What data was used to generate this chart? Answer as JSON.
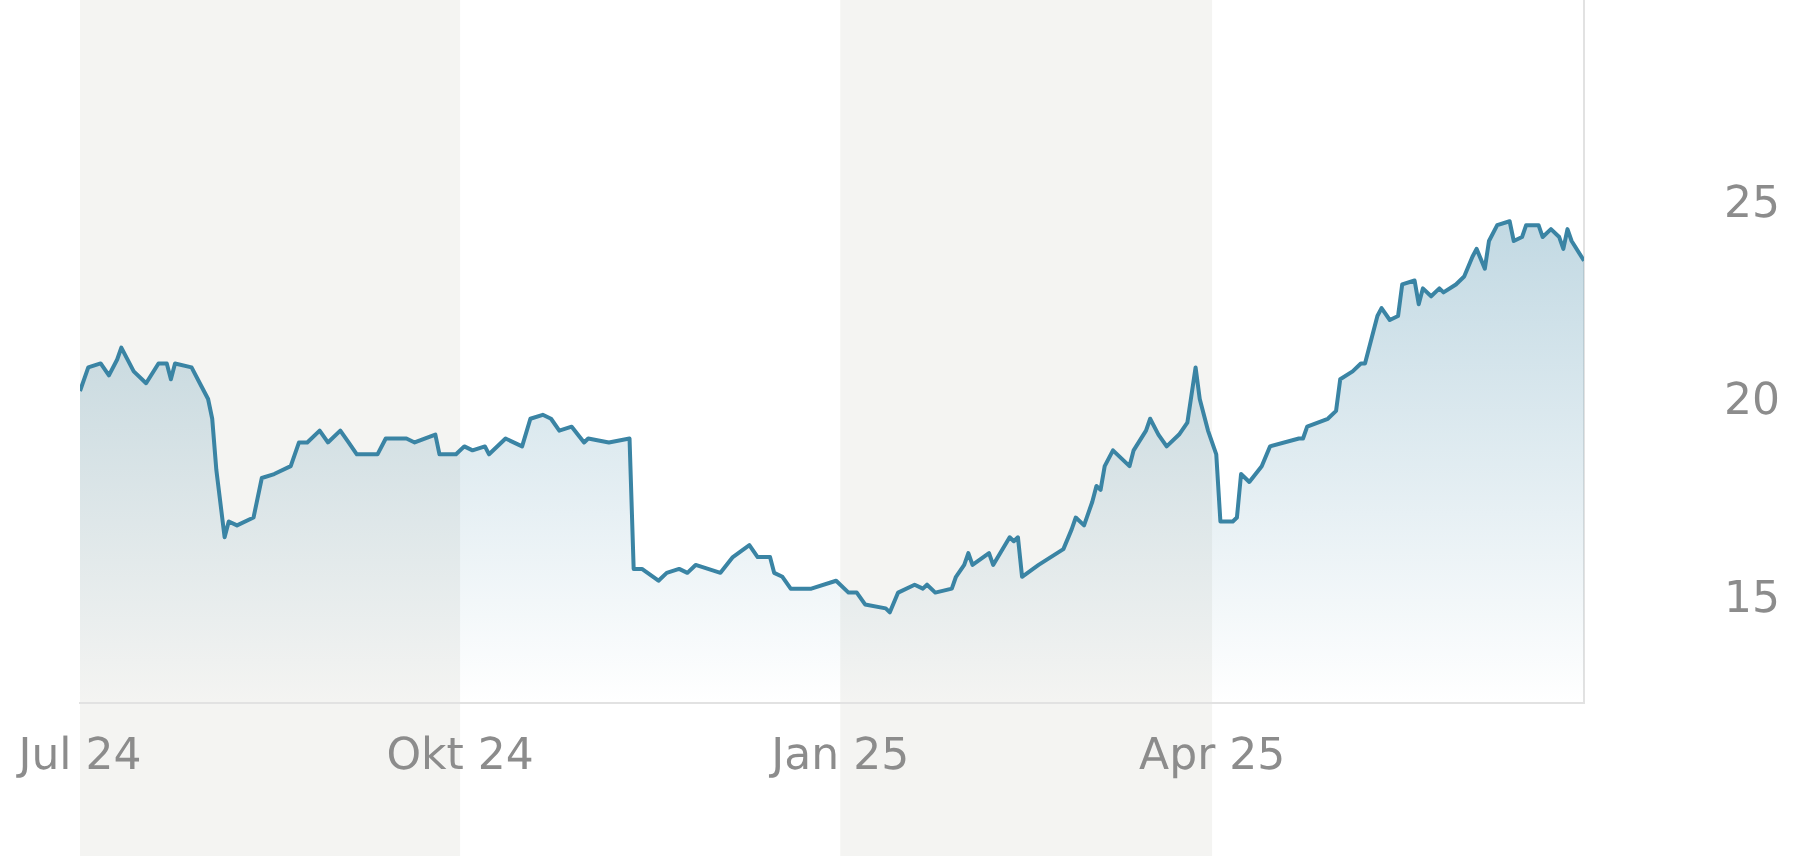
{
  "chart_data": {
    "type": "area",
    "x": [
      "2024-07-01",
      "2024-07-03",
      "2024-07-06",
      "2024-07-08",
      "2024-07-10",
      "2024-07-11",
      "2024-07-14",
      "2024-07-17",
      "2024-07-20",
      "2024-07-22",
      "2024-07-23",
      "2024-07-24",
      "2024-07-28",
      "2024-07-30",
      "2024-08-01",
      "2024-08-02",
      "2024-08-03",
      "2024-08-05",
      "2024-08-06",
      "2024-08-08",
      "2024-08-12",
      "2024-08-14",
      "2024-08-17",
      "2024-08-21",
      "2024-08-23",
      "2024-08-25",
      "2024-08-28",
      "2024-08-30",
      "2024-09-02",
      "2024-09-04",
      "2024-09-06",
      "2024-09-11",
      "2024-09-13",
      "2024-09-18",
      "2024-09-20",
      "2024-09-25",
      "2024-09-26",
      "2024-09-30",
      "2024-10-02",
      "2024-10-04",
      "2024-10-07",
      "2024-10-08",
      "2024-10-12",
      "2024-10-16",
      "2024-10-18",
      "2024-10-21",
      "2024-10-23",
      "2024-10-25",
      "2024-10-28",
      "2024-10-31",
      "2024-11-01",
      "2024-11-06",
      "2024-11-11",
      "2024-11-12",
      "2024-11-14",
      "2024-11-18",
      "2024-11-20",
      "2024-11-23",
      "2024-11-25",
      "2024-11-27",
      "2024-11-30",
      "2024-12-03",
      "2024-12-06",
      "2024-12-10",
      "2024-12-12",
      "2024-12-15",
      "2024-12-16",
      "2024-12-18",
      "2024-12-20",
      "2024-12-25",
      "2024-12-31",
      "2025-01-03",
      "2025-01-05",
      "2025-01-07",
      "2025-01-12",
      "2025-01-13",
      "2025-01-15",
      "2025-01-19",
      "2025-01-21",
      "2025-01-22",
      "2025-01-24",
      "2025-01-28",
      "2025-01-29",
      "2025-01-31",
      "2025-02-01",
      "2025-02-02",
      "2025-02-06",
      "2025-02-07",
      "2025-02-11",
      "2025-02-12",
      "2025-02-13",
      "2025-02-14",
      "2025-02-18",
      "2025-02-24",
      "2025-02-26",
      "2025-02-27",
      "2025-03-01",
      "2025-03-03",
      "2025-03-04",
      "2025-03-05",
      "2025-03-06",
      "2025-03-08",
      "2025-03-12",
      "2025-03-13",
      "2025-03-16",
      "2025-03-17",
      "2025-03-19",
      "2025-03-21",
      "2025-03-24",
      "2025-03-26",
      "2025-03-28",
      "2025-03-29",
      "2025-03-31",
      "2025-04-02",
      "2025-04-03",
      "2025-04-06",
      "2025-04-07",
      "2025-04-08",
      "2025-04-10",
      "2025-04-13",
      "2025-04-15",
      "2025-04-22",
      "2025-04-23",
      "2025-04-24",
      "2025-04-29",
      "2025-05-01",
      "2025-05-02",
      "2025-05-05",
      "2025-05-07",
      "2025-05-08",
      "2025-05-11",
      "2025-05-12",
      "2025-05-14",
      "2025-05-16",
      "2025-05-17",
      "2025-05-20",
      "2025-05-21",
      "2025-05-22",
      "2025-05-24",
      "2025-05-26",
      "2025-05-27",
      "2025-05-30",
      "2025-06-01",
      "2025-06-03",
      "2025-06-04",
      "2025-06-06",
      "2025-06-07",
      "2025-06-09",
      "2025-06-12",
      "2025-06-13",
      "2025-06-15",
      "2025-06-16",
      "2025-06-19",
      "2025-06-20",
      "2025-06-22",
      "2025-06-24",
      "2025-06-25",
      "2025-06-26",
      "2025-06-27",
      "2025-06-30"
    ],
    "series": [
      {
        "color": "#3a84a4",
        "values": [
          20.3,
          20.9,
          21.0,
          20.7,
          21.1,
          21.4,
          20.8,
          20.5,
          21.0,
          21.0,
          20.6,
          21.0,
          20.9,
          20.5,
          20.1,
          19.6,
          18.3,
          16.6,
          17.0,
          16.9,
          17.1,
          18.1,
          18.2,
          18.4,
          19.0,
          19.0,
          19.3,
          19.0,
          19.3,
          19.0,
          18.7,
          18.7,
          19.1,
          19.1,
          19.0,
          19.2,
          18.7,
          18.7,
          18.9,
          18.8,
          18.9,
          18.7,
          19.1,
          18.9,
          19.6,
          19.7,
          19.6,
          19.3,
          19.4,
          19.0,
          19.1,
          19.0,
          19.1,
          15.8,
          15.8,
          15.5,
          15.7,
          15.8,
          15.7,
          15.9,
          15.8,
          15.7,
          16.1,
          16.4,
          16.1,
          16.1,
          15.7,
          15.6,
          15.3,
          15.3,
          15.5,
          15.2,
          15.2,
          14.9,
          14.8,
          14.7,
          15.2,
          15.4,
          15.3,
          15.4,
          15.2,
          15.3,
          15.6,
          15.9,
          16.2,
          15.9,
          16.2,
          15.9,
          16.6,
          16.5,
          16.6,
          15.6,
          15.9,
          16.3,
          16.8,
          17.1,
          16.9,
          17.5,
          17.9,
          17.8,
          18.4,
          18.8,
          18.4,
          18.8,
          19.3,
          19.6,
          19.2,
          18.9,
          19.2,
          19.5,
          20.9,
          20.1,
          19.3,
          18.7,
          17.0,
          17.0,
          17.1,
          18.2,
          18.0,
          18.4,
          18.9,
          19.1,
          19.1,
          19.4,
          19.6,
          19.8,
          20.6,
          20.8,
          21.0,
          21.0,
          22.2,
          22.4,
          22.1,
          22.2,
          23.0,
          23.1,
          22.5,
          22.9,
          22.7,
          22.9,
          22.8,
          23.0,
          23.2,
          23.7,
          23.9,
          23.4,
          24.1,
          24.5,
          24.6,
          24.1,
          24.2,
          24.5,
          24.5,
          24.2,
          24.4,
          24.2,
          23.9,
          24.4,
          24.1,
          23.6
        ]
      }
    ],
    "xlim": [
      "2024-07-01",
      "2025-06-30"
    ],
    "xticks": [
      {
        "value": "2024-07-01",
        "label": "Jul 24"
      },
      {
        "value": "2024-10-01",
        "label": "Okt 24"
      },
      {
        "value": "2025-01-01",
        "label": "Jan 25"
      },
      {
        "value": "2025-04-01",
        "label": "Apr 25"
      }
    ],
    "ylim": [
      12.4,
      30.2
    ],
    "yticks": [
      15,
      20,
      25
    ],
    "bands": [
      {
        "axis": "x",
        "from": "2024-07-01",
        "to": "2024-10-01",
        "color": "#f4f4f2"
      },
      {
        "axis": "x",
        "from": "2025-01-01",
        "to": "2025-04-01",
        "color": "#f4f4f2"
      }
    ],
    "grid": false,
    "legend": false,
    "marker": "none",
    "line_style": "solid"
  }
}
